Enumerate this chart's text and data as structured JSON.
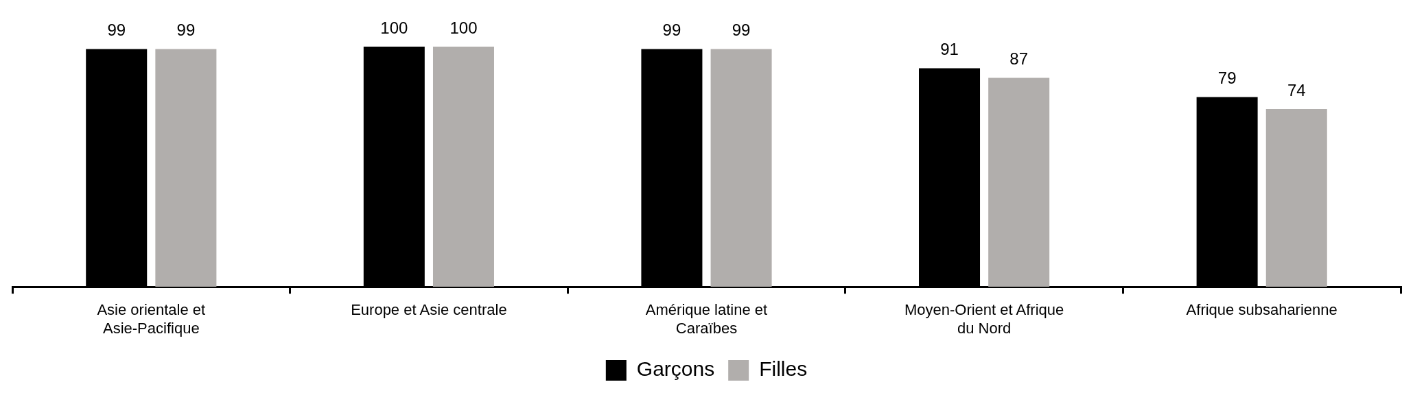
{
  "chart_data": {
    "type": "bar",
    "categories": [
      "Asie orientale et Asie-Pacifique",
      "Europe et Asie centrale",
      "Amérique latine et Caraïbes",
      "Moyen-Orient et Afrique du Nord",
      "Afrique subsaharienne"
    ],
    "series": [
      {
        "name": "Garçons",
        "color": "#000000",
        "values": [
          99,
          100,
          99,
          91,
          79
        ]
      },
      {
        "name": "Filles",
        "color": "#b1aeac",
        "values": [
          99,
          100,
          99,
          87,
          74
        ]
      }
    ],
    "data_labels": true,
    "legend": "bottom",
    "grid": false
  }
}
